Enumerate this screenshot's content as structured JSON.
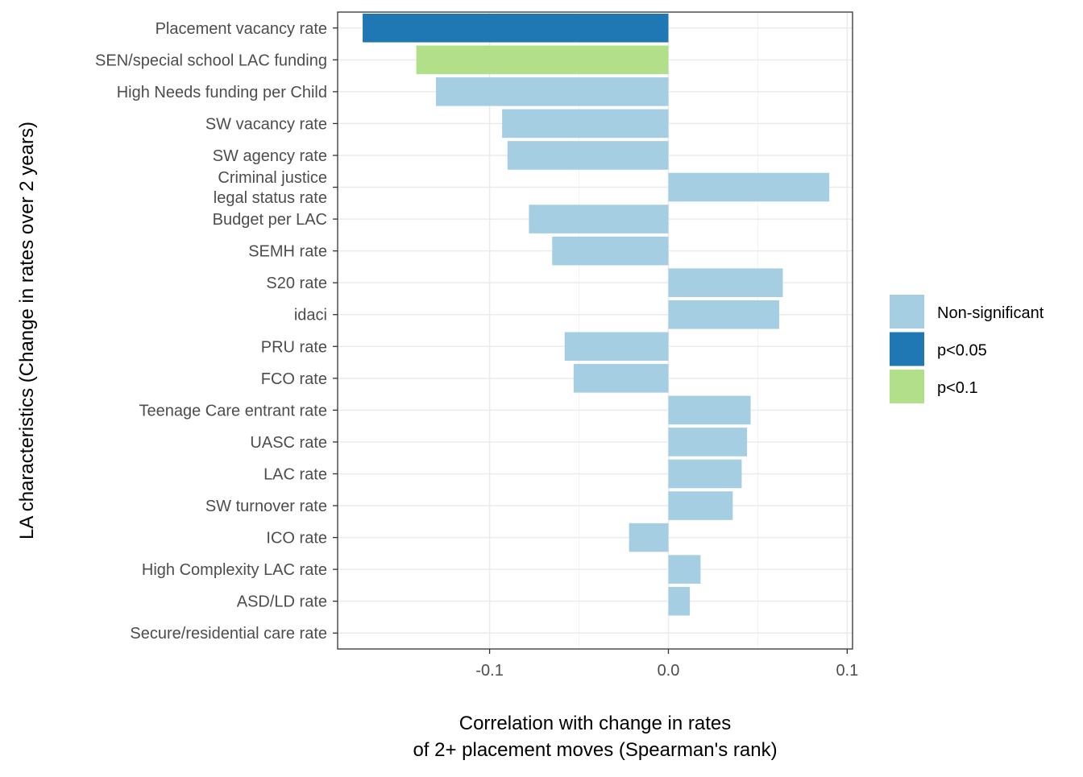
{
  "chart_data": {
    "type": "bar",
    "orientation": "horizontal",
    "title": "",
    "xlabel": [
      "Correlation with change in rates",
      "of 2+ placement moves (Spearman's rank)"
    ],
    "ylabel": "LA characteristics (Change in rates over 2 years)",
    "xlim": [
      -0.185,
      0.103
    ],
    "xticks": [
      -0.1,
      0.0,
      0.1
    ],
    "xtick_labels": [
      "-0.1",
      "0.0",
      "0.1"
    ],
    "grid": true,
    "legend_position": "right",
    "legend": [
      {
        "key": "ns",
        "label": "Non-significant",
        "color": "#a6cee3"
      },
      {
        "key": "p05",
        "label": "p<0.05",
        "color": "#1f78b4"
      },
      {
        "key": "p10",
        "label": "p<0.1",
        "color": "#b2df8a"
      }
    ],
    "categories": [
      {
        "label": [
          "Placement vacancy rate"
        ],
        "value": -0.171,
        "group": "p05"
      },
      {
        "label": [
          "SEN/special school LAC funding"
        ],
        "value": -0.141,
        "group": "p10"
      },
      {
        "label": [
          "High Needs funding per Child"
        ],
        "value": -0.13,
        "group": "ns"
      },
      {
        "label": [
          "SW vacancy rate"
        ],
        "value": -0.093,
        "group": "ns"
      },
      {
        "label": [
          "SW agency rate"
        ],
        "value": -0.09,
        "group": "ns"
      },
      {
        "label": [
          "Criminal justice",
          "legal status rate"
        ],
        "value": 0.09,
        "group": "ns"
      },
      {
        "label": [
          "Budget per LAC"
        ],
        "value": -0.078,
        "group": "ns"
      },
      {
        "label": [
          "SEMH rate"
        ],
        "value": -0.065,
        "group": "ns"
      },
      {
        "label": [
          "S20 rate"
        ],
        "value": 0.064,
        "group": "ns"
      },
      {
        "label": [
          "idaci"
        ],
        "value": 0.062,
        "group": "ns"
      },
      {
        "label": [
          "PRU rate"
        ],
        "value": -0.058,
        "group": "ns"
      },
      {
        "label": [
          "FCO rate"
        ],
        "value": -0.053,
        "group": "ns"
      },
      {
        "label": [
          "Teenage Care entrant rate"
        ],
        "value": 0.046,
        "group": "ns"
      },
      {
        "label": [
          "UASC rate"
        ],
        "value": 0.044,
        "group": "ns"
      },
      {
        "label": [
          "LAC rate"
        ],
        "value": 0.041,
        "group": "ns"
      },
      {
        "label": [
          "SW turnover rate"
        ],
        "value": 0.036,
        "group": "ns"
      },
      {
        "label": [
          "ICO rate"
        ],
        "value": -0.022,
        "group": "ns"
      },
      {
        "label": [
          "High Complexity LAC rate"
        ],
        "value": 0.018,
        "group": "ns"
      },
      {
        "label": [
          "ASD/LD rate"
        ],
        "value": 0.012,
        "group": "ns"
      },
      {
        "label": [
          "Secure/residential care rate"
        ],
        "value": 0.0,
        "group": "ns"
      }
    ]
  }
}
